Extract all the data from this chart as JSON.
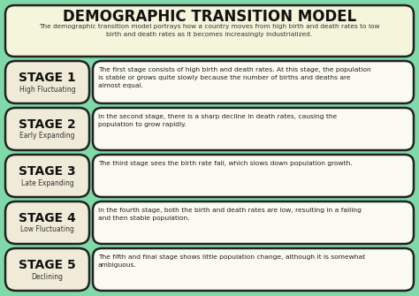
{
  "title": "DEMOGRAPHIC TRANSITION MODEL",
  "subtitle": "The demographic transition model portrays how a country moves from high birth and death rates to low\nbirth and death rates as it becomes increasingly industrialized.",
  "bg_color": "#80d9a8",
  "header_box_color": "#f5f5dc",
  "stage_box_color": "#f0ead8",
  "desc_box_color": "#fafaf0",
  "title_color": "#111111",
  "subtitle_color": "#333333",
  "stage_label_color": "#111111",
  "edge_color": "#222222",
  "stages": [
    {
      "label": "STAGE 1",
      "sublabel": "High Fluctuating",
      "desc": "The first stage consists of high birth and death rates. At this stage, the population\nis stable or grows quite slowly because the number of births and deaths are\nalmost equal."
    },
    {
      "label": "STAGE 2",
      "sublabel": "Early Expanding",
      "desc": "In the second stage, there is a sharp decline in death rates, causing the\npopulation to grow rapidly."
    },
    {
      "label": "STAGE 3",
      "sublabel": "Late Expanding",
      "desc": "The third stage sees the birth rate fall, which slows down population growth."
    },
    {
      "label": "STAGE 4",
      "sublabel": "Low Fluctuating",
      "desc": "In the fourth stage, both the birth and death rates are low, resulting in a falling\nand then stable population."
    },
    {
      "label": "STAGE 5",
      "sublabel": "Declining",
      "desc": "The fifth and final stage shows little population change, although it is somewhat\nambiguous."
    }
  ],
  "fig_w": 4.74,
  "fig_h": 3.35,
  "dpi": 100
}
